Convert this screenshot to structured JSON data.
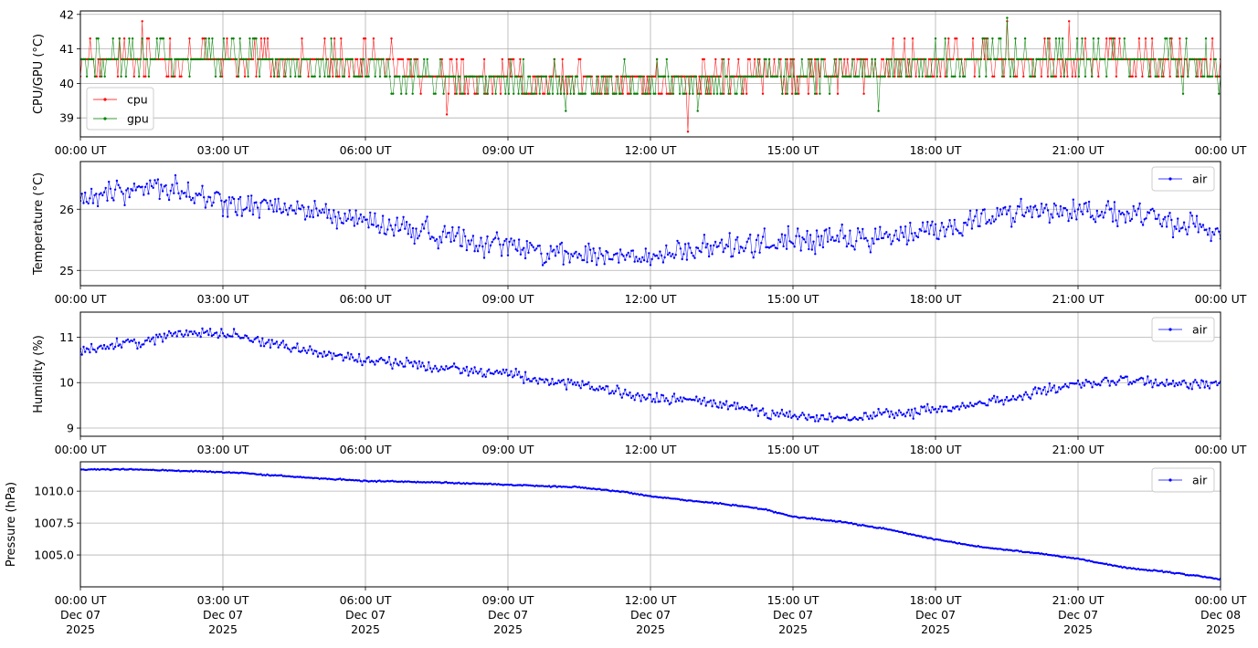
{
  "chart_data": [
    {
      "type": "line",
      "ylabel": "CPU/GPU (°C)",
      "ylim": [
        38.45,
        42.1
      ],
      "yticks": [
        39,
        40,
        41,
        42
      ],
      "ytick_labels": [
        "39",
        "40",
        "41",
        "42"
      ],
      "xlim": [
        "2025-12-07T00:00",
        "2025-12-08T00:00"
      ],
      "xtick_labels": [
        "00:00 UT",
        "03:00 UT",
        "06:00 UT",
        "09:00 UT",
        "12:00 UT",
        "15:00 UT",
        "18:00 UT",
        "21:00 UT",
        "00:00 UT"
      ],
      "grid": true,
      "legend_position": "lower-left",
      "series": [
        {
          "name": "cpu",
          "color": "#ff0000",
          "levels": [
            39.7,
            40.2,
            40.7,
            41.3
          ],
          "anchors": [
            [
              0,
              40.65
            ],
            [
              3,
              40.75
            ],
            [
              6,
              40.6
            ],
            [
              7.5,
              40.2
            ],
            [
              9,
              40.1
            ],
            [
              12,
              40.1
            ],
            [
              15,
              40.3
            ],
            [
              17,
              40.5
            ],
            [
              19,
              40.7
            ],
            [
              21,
              40.7
            ],
            [
              24,
              40.55
            ]
          ],
          "outliers": [
            [
              12.8,
              38.6
            ],
            [
              7.7,
              39.1
            ],
            [
              19.5,
              41.8
            ],
            [
              20.8,
              41.8
            ],
            [
              1.3,
              41.8
            ]
          ]
        },
        {
          "name": "gpu",
          "color": "#008000",
          "levels": [
            39.7,
            40.2,
            40.7,
            41.3,
            41.9
          ],
          "anchors": [
            [
              0,
              40.7
            ],
            [
              3,
              40.8
            ],
            [
              6,
              40.5
            ],
            [
              7.5,
              40.15
            ],
            [
              9,
              40.05
            ],
            [
              12,
              40.0
            ],
            [
              15,
              40.25
            ],
            [
              17,
              40.4
            ],
            [
              19,
              40.7
            ],
            [
              21,
              40.75
            ],
            [
              24,
              40.5
            ]
          ],
          "outliers": [
            [
              13.0,
              39.2
            ],
            [
              16.8,
              39.2
            ],
            [
              10.2,
              39.2
            ],
            [
              19.5,
              41.9
            ]
          ]
        }
      ]
    },
    {
      "type": "line",
      "ylabel": "Temperature (°C)",
      "ylim": [
        24.75,
        26.78
      ],
      "yticks": [
        25,
        26
      ],
      "ytick_labels": [
        "25",
        "26"
      ],
      "xlim": [
        "2025-12-07T00:00",
        "2025-12-08T00:00"
      ],
      "xtick_labels": [
        "00:00 UT",
        "03:00 UT",
        "06:00 UT",
        "09:00 UT",
        "12:00 UT",
        "15:00 UT",
        "18:00 UT",
        "21:00 UT",
        "00:00 UT"
      ],
      "grid": true,
      "legend_position": "upper-right",
      "series": [
        {
          "name": "air",
          "color": "#0000ff",
          "noise": 0.17,
          "anchors": [
            [
              0,
              26.15
            ],
            [
              1.5,
              26.4
            ],
            [
              3,
              26.1
            ],
            [
              5,
              25.95
            ],
            [
              6,
              25.8
            ],
            [
              7.5,
              25.6
            ],
            [
              9,
              25.4
            ],
            [
              10.5,
              25.25
            ],
            [
              12,
              25.2
            ],
            [
              13.5,
              25.4
            ],
            [
              15,
              25.5
            ],
            [
              16.5,
              25.5
            ],
            [
              18,
              25.65
            ],
            [
              19.5,
              25.95
            ],
            [
              21,
              26.0
            ],
            [
              22.5,
              25.85
            ],
            [
              24,
              25.65
            ]
          ]
        }
      ]
    },
    {
      "type": "line",
      "ylabel": "Humidity (%)",
      "ylim": [
        8.82,
        11.55
      ],
      "yticks": [
        9,
        10,
        11
      ],
      "ytick_labels": [
        "9",
        "10",
        "11"
      ],
      "xlim": [
        "2025-12-07T00:00",
        "2025-12-08T00:00"
      ],
      "xtick_labels": [
        "00:00 UT",
        "03:00 UT",
        "06:00 UT",
        "09:00 UT",
        "12:00 UT",
        "15:00 UT",
        "18:00 UT",
        "21:00 UT",
        "00:00 UT"
      ],
      "grid": true,
      "legend_position": "upper-right",
      "series": [
        {
          "name": "air",
          "color": "#0000ff",
          "noise": 0.1,
          "anchors": [
            [
              0,
              10.7
            ],
            [
              1.5,
              10.95
            ],
            [
              2.5,
              11.15
            ],
            [
              3.5,
              11.0
            ],
            [
              5,
              10.65
            ],
            [
              6,
              10.5
            ],
            [
              7.5,
              10.35
            ],
            [
              9,
              10.2
            ],
            [
              10,
              10.0
            ],
            [
              11,
              9.85
            ],
            [
              12,
              9.65
            ],
            [
              13,
              9.6
            ],
            [
              14,
              9.45
            ],
            [
              15,
              9.25
            ],
            [
              16,
              9.2
            ],
            [
              17,
              9.3
            ],
            [
              18,
              9.4
            ],
            [
              19,
              9.55
            ],
            [
              20,
              9.75
            ],
            [
              21,
              9.95
            ],
            [
              22,
              10.05
            ],
            [
              23,
              9.95
            ],
            [
              24,
              10.0
            ]
          ]
        }
      ]
    },
    {
      "type": "line",
      "ylabel": "Pressure (hPa)",
      "ylim": [
        1002.5,
        1012.3
      ],
      "yticks": [
        1005.0,
        1007.5,
        1010.0
      ],
      "ytick_labels": [
        "1005.0",
        "1007.5",
        "1010.0"
      ],
      "xlim": [
        "2025-12-07T00:00",
        "2025-12-08T00:00"
      ],
      "xtick_labels": [
        "00:00 UT",
        "03:00 UT",
        "06:00 UT",
        "09:00 UT",
        "12:00 UT",
        "15:00 UT",
        "18:00 UT",
        "21:00 UT",
        "00:00 UT"
      ],
      "xtick_date_lines": [
        "Dec 07",
        "Dec 07",
        "Dec 07",
        "Dec 07",
        "Dec 07",
        "Dec 07",
        "Dec 07",
        "Dec 07",
        "Dec 08"
      ],
      "xtick_year_lines": [
        "2025",
        "2025",
        "2025",
        "2025",
        "2025",
        "2025",
        "2025",
        "2025",
        "2025"
      ],
      "grid": true,
      "legend_position": "upper-right",
      "series": [
        {
          "name": "air",
          "color": "#0000ff",
          "noise": 0.04,
          "anchors": [
            [
              0,
              1011.7
            ],
            [
              1,
              1011.72
            ],
            [
              2.5,
              1011.55
            ],
            [
              3.5,
              1011.4
            ],
            [
              4,
              1011.25
            ],
            [
              5,
              1011.0
            ],
            [
              6,
              1010.8
            ],
            [
              7.5,
              1010.7
            ],
            [
              9,
              1010.5
            ],
            [
              10.5,
              1010.3
            ],
            [
              11.5,
              1009.9
            ],
            [
              12,
              1009.6
            ],
            [
              13,
              1009.2
            ],
            [
              14,
              1008.8
            ],
            [
              14.5,
              1008.5
            ],
            [
              15,
              1008.0
            ],
            [
              16,
              1007.6
            ],
            [
              17,
              1007.0
            ],
            [
              18,
              1006.2
            ],
            [
              19,
              1005.6
            ],
            [
              20,
              1005.2
            ],
            [
              21,
              1004.7
            ],
            [
              22,
              1004.0
            ],
            [
              23,
              1003.6
            ],
            [
              24,
              1003.1
            ]
          ]
        }
      ]
    }
  ]
}
